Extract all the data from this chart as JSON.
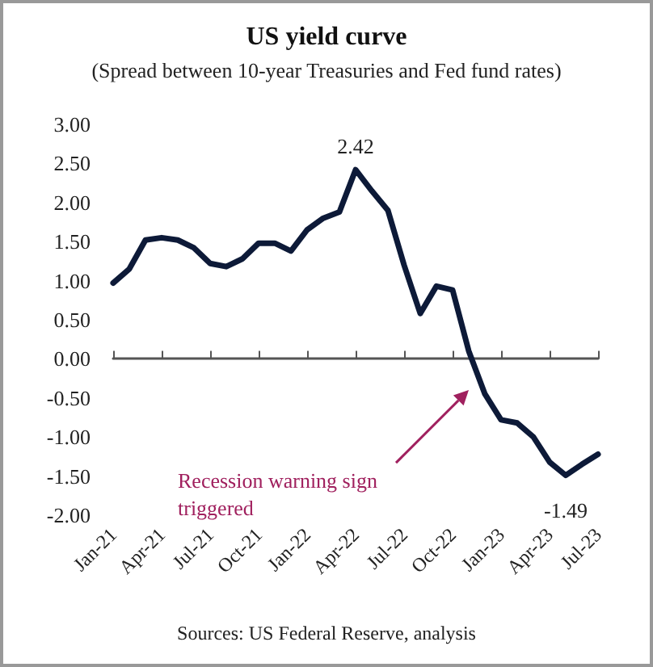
{
  "chart_data": {
    "type": "line",
    "title": "US yield curve",
    "subtitle": "(Spread between 10-year Treasuries and Fed fund rates)",
    "categories": [
      "Jan-21",
      null,
      null,
      "Apr-21",
      null,
      null,
      "Jul-21",
      null,
      null,
      "Oct-21",
      null,
      null,
      "Jan-22",
      null,
      null,
      "Apr-22",
      null,
      null,
      "Jul-22",
      null,
      null,
      "Oct-22",
      null,
      null,
      "Jan-23",
      null,
      null,
      "Apr-23",
      null,
      null,
      "Jul-23"
    ],
    "series": [
      {
        "color": "#0d1a38",
        "values": [
          0.97,
          1.15,
          1.52,
          1.55,
          1.52,
          1.42,
          1.22,
          1.18,
          1.28,
          1.48,
          1.48,
          1.38,
          1.65,
          1.8,
          1.88,
          2.42,
          2.15,
          1.9,
          1.2,
          0.58,
          0.93,
          0.88,
          0.1,
          -0.45,
          -0.78,
          -0.82,
          -1.0,
          -1.32,
          -1.49,
          -1.35,
          -1.22
        ],
        "value_labels": [
          null,
          null,
          null,
          null,
          null,
          null,
          null,
          null,
          null,
          null,
          null,
          null,
          null,
          null,
          null,
          "2.42",
          null,
          null,
          null,
          null,
          null,
          null,
          null,
          null,
          null,
          null,
          null,
          null,
          "-1.49",
          null,
          null
        ]
      }
    ],
    "ylim": [
      -2,
      3
    ],
    "yticks": [
      {
        "value": -2,
        "label": "-2.00"
      },
      {
        "value": -1.5,
        "label": "-1.50"
      },
      {
        "value": -1,
        "label": "-1.00"
      },
      {
        "value": -0.5,
        "label": "-0.50"
      },
      {
        "value": 0,
        "label": "0.00"
      },
      {
        "value": 0.5,
        "label": "0.50"
      },
      {
        "value": 1,
        "label": "1.00"
      },
      {
        "value": 1.5,
        "label": "1.50"
      },
      {
        "value": 2,
        "label": "2.00"
      },
      {
        "value": 2.5,
        "label": "2.50"
      },
      {
        "value": 3,
        "label": "3.00"
      }
    ],
    "marker": "none",
    "line_style": "solid",
    "annotations": [
      "Recession warning sign triggered",
      "Sources: US Federal Reserve, analysis"
    ]
  }
}
